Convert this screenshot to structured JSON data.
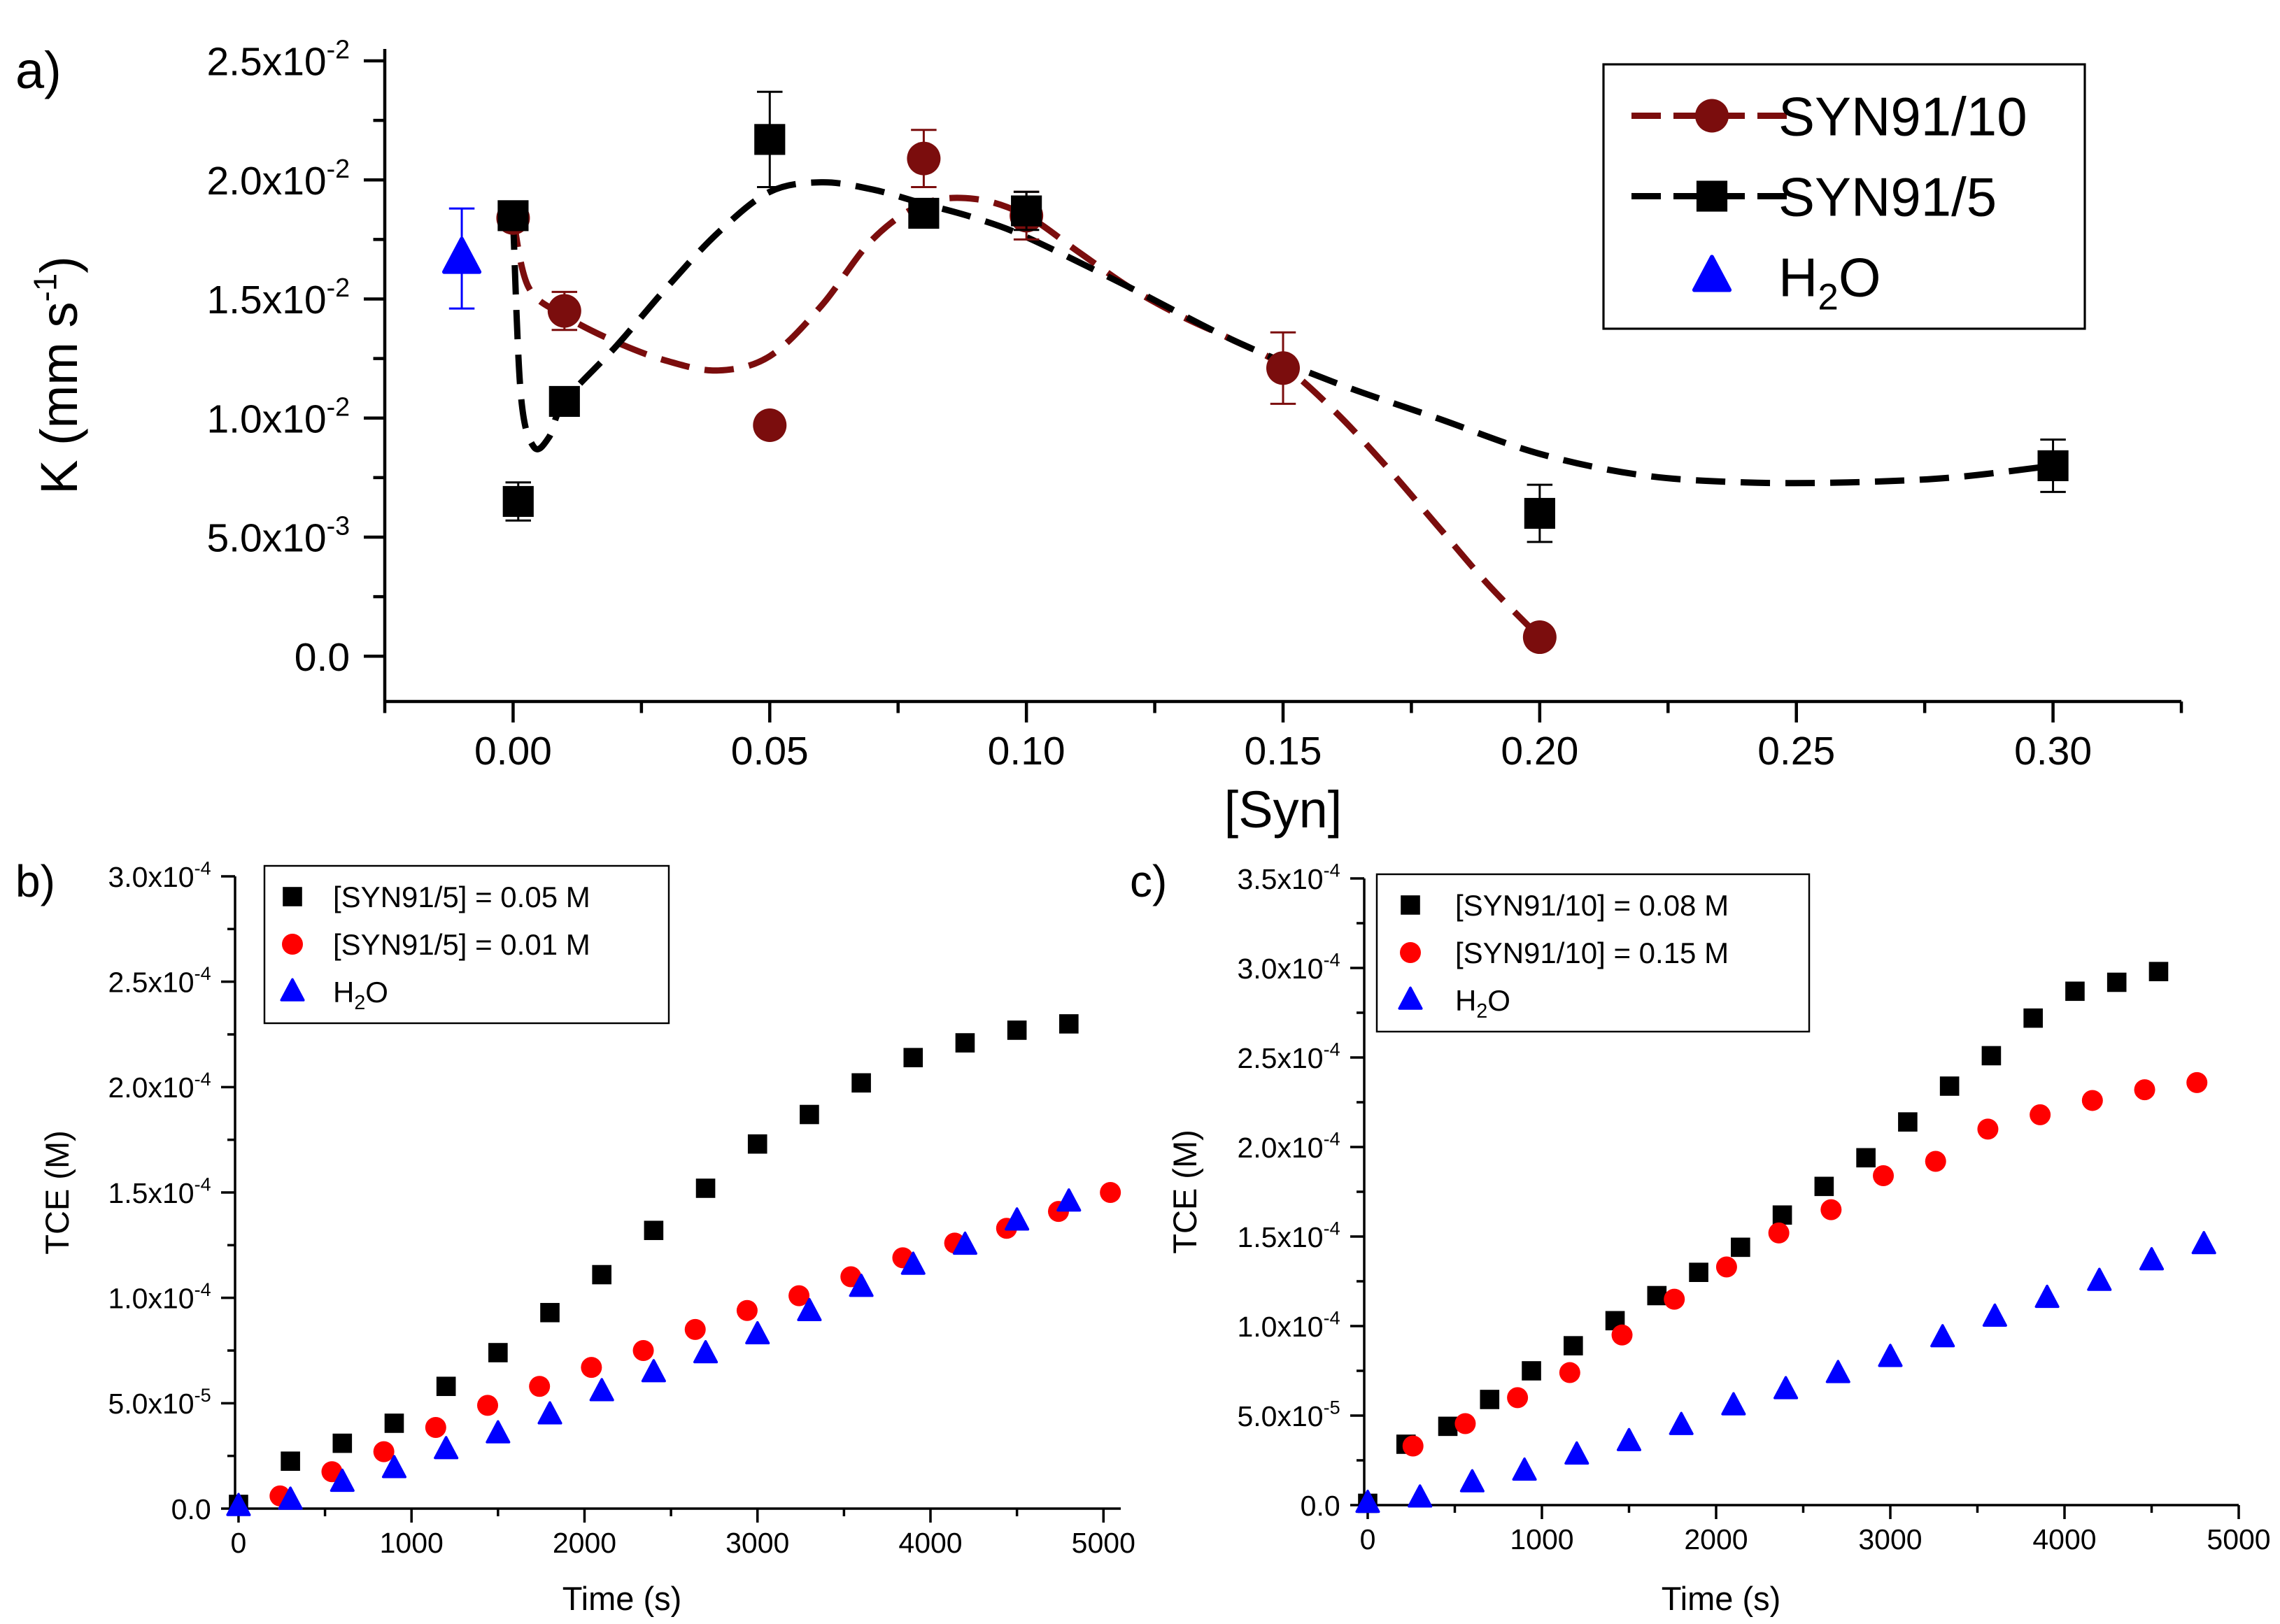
{
  "chart_data": [
    {
      "panel": "a)",
      "type": "scatter",
      "title": "",
      "xlabel": "[Syn]",
      "ylabel": "K (mm s",
      "ylabel_sup": "-1",
      "ylabel_close": ")",
      "xlim": [
        -0.025,
        0.325
      ],
      "ylim": [
        -0.0019,
        0.0255
      ],
      "xticks": [
        0.0,
        0.05,
        0.1,
        0.15,
        0.2,
        0.25,
        0.3
      ],
      "xtick_labels": [
        "0.00",
        "0.05",
        "0.10",
        "0.15",
        "0.20",
        "0.25",
        "0.30"
      ],
      "yticks": [
        0.0,
        0.005,
        0.01,
        0.015,
        0.02,
        0.025
      ],
      "ytick_labels": [
        {
          "mant": "0.0",
          "exp": ""
        },
        {
          "mant": "5.0x10",
          "exp": "-3"
        },
        {
          "mant": "1.0x10",
          "exp": "-2"
        },
        {
          "mant": "1.5x10",
          "exp": "-2"
        },
        {
          "mant": "2.0x10",
          "exp": "-2"
        },
        {
          "mant": "2.5x10",
          "exp": "-2"
        }
      ],
      "legend_position": "top-right",
      "series": [
        {
          "name": "SYN91/10",
          "legend_main": "SYN91/10",
          "legend_sub": "",
          "legend_tail": "",
          "marker": "circle",
          "color": "#7b0d0d",
          "line": "dashed",
          "x": [
            0.0,
            0.01,
            0.05,
            0.08,
            0.1,
            0.15,
            0.2
          ],
          "y": [
            0.0184,
            0.0145,
            0.0097,
            0.0209,
            0.0185,
            0.0121,
            0.0008
          ],
          "err": [
            0.0005,
            0.0008,
            0.0,
            0.0012,
            0.001,
            0.0015,
            0.0
          ]
        },
        {
          "name": "SYN91/5",
          "legend_main": "SYN91/5",
          "legend_sub": "",
          "legend_tail": "",
          "marker": "square",
          "color": "#000000",
          "line": "dashed",
          "x": [
            0.0,
            0.001,
            0.01,
            0.05,
            0.08,
            0.1,
            0.2,
            0.3
          ],
          "y": [
            0.0185,
            0.0065,
            0.0107,
            0.0217,
            0.0186,
            0.0187,
            0.006,
            0.008
          ],
          "err": [
            0.0003,
            0.0008,
            0.0,
            0.002,
            0.0003,
            0.0008,
            0.0012,
            0.0011
          ]
        },
        {
          "name": "H2O",
          "legend_main": "H",
          "legend_sub": "2",
          "legend_tail": "O",
          "marker": "triangle",
          "color": "#0000ff",
          "line": "none",
          "x": [
            -0.01
          ],
          "y": [
            0.0167
          ],
          "err": [
            0.0021
          ]
        }
      ],
      "fit_curves": [
        {
          "name": "SYN91/10 fit",
          "color": "#7b0d0d",
          "x": [
            0.0,
            0.003,
            0.01,
            0.02,
            0.03,
            0.04,
            0.05,
            0.06,
            0.07,
            0.08,
            0.09,
            0.1,
            0.11,
            0.12,
            0.13,
            0.14,
            0.15,
            0.16,
            0.17,
            0.18,
            0.19,
            0.2
          ],
          "y": [
            0.0184,
            0.0155,
            0.0143,
            0.0132,
            0.0124,
            0.012,
            0.0126,
            0.0147,
            0.0175,
            0.019,
            0.0192,
            0.0185,
            0.017,
            0.0155,
            0.0143,
            0.0133,
            0.0122,
            0.0103,
            0.008,
            0.0055,
            0.003,
            0.0008
          ]
        },
        {
          "name": "SYN91/5 fit",
          "color": "#000000",
          "x": [
            0.0,
            0.0015,
            0.004,
            0.007,
            0.01,
            0.02,
            0.03,
            0.04,
            0.05,
            0.06,
            0.07,
            0.08,
            0.09,
            0.1,
            0.12,
            0.14,
            0.16,
            0.18,
            0.2,
            0.22,
            0.24,
            0.26,
            0.28,
            0.3
          ],
          "y": [
            0.0183,
            0.011,
            0.0088,
            0.0092,
            0.0107,
            0.013,
            0.0155,
            0.0178,
            0.0195,
            0.0199,
            0.0196,
            0.019,
            0.0184,
            0.0176,
            0.0155,
            0.0133,
            0.0115,
            0.01,
            0.0085,
            0.0076,
            0.0073,
            0.0073,
            0.0075,
            0.008
          ]
        }
      ]
    },
    {
      "panel": "b)",
      "type": "scatter",
      "title": "",
      "xlabel": "Time (s)",
      "ylabel": "TCE (M)",
      "xlim": [
        -20,
        5100
      ],
      "ylim": [
        0,
        0.0003
      ],
      "xticks": [
        0,
        1000,
        2000,
        3000,
        4000,
        5000
      ],
      "xtick_labels": [
        "0",
        "1000",
        "2000",
        "3000",
        "4000",
        "5000"
      ],
      "yticks": [
        0,
        5e-05,
        0.0001,
        0.00015,
        0.0002,
        0.00025,
        0.0003
      ],
      "ytick_labels": [
        {
          "mant": "0.0",
          "exp": ""
        },
        {
          "mant": "5.0x10",
          "exp": "-5"
        },
        {
          "mant": "1.0x10",
          "exp": "-4"
        },
        {
          "mant": "1.5x10",
          "exp": "-4"
        },
        {
          "mant": "2.0x10",
          "exp": "-4"
        },
        {
          "mant": "2.5x10",
          "exp": "-4"
        },
        {
          "mant": "3.0x10",
          "exp": "-4"
        }
      ],
      "legend_position": "top-left",
      "series": [
        {
          "name": "[SYN91/5] = 0.05 M",
          "legend_main": "[SYN91/5] = 0.05 M",
          "legend_sub": "",
          "legend_tail": "",
          "marker": "square",
          "color": "#000000",
          "x": [
            0,
            300,
            600,
            900,
            1200,
            1500,
            1800,
            2100,
            2400,
            2700,
            3000,
            3300,
            3600,
            3900,
            4200,
            4500,
            4800
          ],
          "y": [
            2e-06,
            2.25e-05,
            3.1e-05,
            4.05e-05,
            5.8e-05,
            7.4e-05,
            9.3e-05,
            0.000111,
            0.000132,
            0.000152,
            0.000173,
            0.000187,
            0.000202,
            0.000214,
            0.000221,
            0.000227,
            0.00023
          ]
        },
        {
          "name": "[SYN91/5] = 0.01 M",
          "legend_main": "[SYN91/5] = 0.01 M",
          "legend_sub": "",
          "legend_tail": "",
          "marker": "circle",
          "color": "#ff0000",
          "x": [
            240,
            540,
            840,
            1140,
            1440,
            1740,
            2040,
            2340,
            2640,
            2940,
            3240,
            3540,
            3840,
            4140,
            4440,
            4740,
            5040
          ],
          "y": [
            6e-06,
            1.75e-05,
            2.7e-05,
            3.85e-05,
            4.9e-05,
            5.8e-05,
            6.7e-05,
            7.5e-05,
            8.5e-05,
            9.4e-05,
            0.000101,
            0.00011,
            0.000119,
            0.000126,
            0.000133,
            0.000141,
            0.00015
          ]
        },
        {
          "name": "H2O",
          "legend_main": "H",
          "legend_sub": "2",
          "legend_tail": "O",
          "marker": "triangle",
          "color": "#0000ff",
          "x": [
            0,
            300,
            600,
            900,
            1200,
            1500,
            1800,
            2100,
            2400,
            2700,
            3000,
            3300,
            3600,
            3900,
            4200,
            4500,
            4800
          ],
          "y": [
            1e-06,
            4e-06,
            1.25e-05,
            1.9e-05,
            2.8e-05,
            3.55e-05,
            4.45e-05,
            5.55e-05,
            6.45e-05,
            7.35e-05,
            8.25e-05,
            9.35e-05,
            0.000105,
            0.0001155,
            0.000125,
            0.0001365,
            0.0001455
          ]
        }
      ]
    },
    {
      "panel": "c)",
      "type": "scatter",
      "title": "",
      "xlabel": "Time (s)",
      "ylabel": "TCE (M)",
      "xlim": [
        -20,
        5000
      ],
      "ylim": [
        0,
        0.00035
      ],
      "xticks": [
        0,
        1000,
        2000,
        3000,
        4000,
        5000
      ],
      "xtick_labels": [
        "0",
        "1000",
        "2000",
        "3000",
        "4000",
        "5000"
      ],
      "yticks": [
        0,
        5e-05,
        0.0001,
        0.00015,
        0.0002,
        0.00025,
        0.0003,
        0.00035
      ],
      "ytick_labels": [
        {
          "mant": "0.0",
          "exp": ""
        },
        {
          "mant": "5.0x10",
          "exp": "-5"
        },
        {
          "mant": "1.0x10",
          "exp": "-4"
        },
        {
          "mant": "1.5x10",
          "exp": "-4"
        },
        {
          "mant": "2.0x10",
          "exp": "-4"
        },
        {
          "mant": "2.5x10",
          "exp": "-4"
        },
        {
          "mant": "3.0x10",
          "exp": "-4"
        },
        {
          "mant": "3.5x10",
          "exp": "-4"
        }
      ],
      "legend_position": "top-left",
      "series": [
        {
          "name": "[SYN91/10] = 0.08 M",
          "legend_main": "[SYN91/10] = 0.08 M",
          "legend_sub": "",
          "legend_tail": "",
          "marker": "square",
          "color": "#000000",
          "x": [
            0,
            220,
            460,
            700,
            940,
            1180,
            1420,
            1660,
            1900,
            2140,
            2380,
            2620,
            2860,
            3100,
            3340,
            3580,
            3820,
            4060,
            4300,
            4540
          ],
          "y": [
            1e-06,
            3.4e-05,
            4.4e-05,
            5.9e-05,
            7.5e-05,
            8.9e-05,
            0.000103,
            0.000117,
            0.00013,
            0.000144,
            0.000162,
            0.000178,
            0.000194,
            0.000214,
            0.000234,
            0.000251,
            0.000272,
            0.000287,
            0.000292,
            0.000298
          ]
        },
        {
          "name": "[SYN91/10] = 0.15 M",
          "legend_main": "[SYN91/10] = 0.15 M",
          "legend_sub": "",
          "legend_tail": "",
          "marker": "circle",
          "color": "#ff0000",
          "x": [
            260,
            560,
            860,
            1160,
            1460,
            1760,
            2060,
            2360,
            2660,
            2960,
            3260,
            3560,
            3860,
            4160,
            4460,
            4760
          ],
          "y": [
            3.3e-05,
            4.55e-05,
            6e-05,
            7.4e-05,
            9.5e-05,
            0.000115,
            0.000133,
            0.000152,
            0.000165,
            0.000184,
            0.000192,
            0.00021,
            0.000218,
            0.000226,
            0.000232,
            0.000236
          ]
        },
        {
          "name": "H2O",
          "legend_main": "H",
          "legend_sub": "2",
          "legend_tail": "O",
          "marker": "triangle",
          "color": "#0000ff",
          "x": [
            0,
            300,
            600,
            900,
            1200,
            1500,
            1800,
            2100,
            2400,
            2700,
            3000,
            3300,
            3600,
            3900,
            4200,
            4500,
            4800
          ],
          "y": [
            1e-06,
            4e-06,
            1.25e-05,
            1.9e-05,
            2.8e-05,
            3.55e-05,
            4.45e-05,
            5.55e-05,
            6.45e-05,
            7.35e-05,
            8.25e-05,
            9.35e-05,
            0.000105,
            0.0001155,
            0.000125,
            0.0001365,
            0.0001455
          ]
        }
      ]
    }
  ]
}
